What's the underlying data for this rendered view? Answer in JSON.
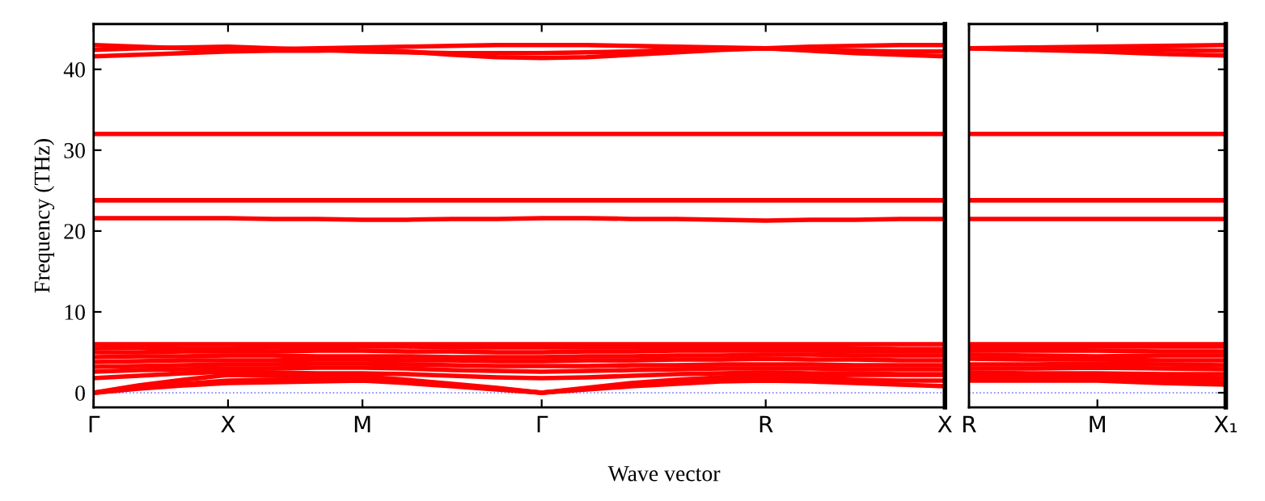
{
  "chart_data": [
    {
      "type": "line",
      "ylabel": "Frequency (THz)",
      "xlabel": "Wave vector",
      "ylim": [
        -1.8,
        45.6
      ],
      "yticks": [
        0,
        10,
        20,
        30,
        40
      ],
      "grid": false,
      "legend": false,
      "marker": "none",
      "line_style": "solid",
      "categories": [
        "Γ",
        null,
        null,
        "X",
        null,
        null,
        "M",
        null,
        null,
        null,
        "Γ",
        null,
        null,
        null,
        null,
        "R",
        null,
        null,
        null,
        "X"
      ],
      "ref_lines": [
        {
          "axis": "y",
          "value": 0,
          "color": "#8080ff",
          "line_style": "dotted"
        }
      ],
      "series": [
        {
          "color": "#ff0000",
          "values": [
            0,
            0.5,
            0.9,
            1.2,
            1.3,
            1.4,
            1.5,
            1.2,
            0.8,
            0.4,
            0,
            0.4,
            0.8,
            1.1,
            1.4,
            1.5,
            1.4,
            1.2,
            1.0,
            0.8
          ]
        },
        {
          "color": "#ff0000",
          "values": [
            0,
            0.6,
            1.1,
            1.5,
            1.6,
            1.7,
            1.8,
            1.4,
            1.0,
            0.5,
            0,
            0.5,
            1.0,
            1.4,
            1.7,
            1.8,
            1.7,
            1.6,
            1.5,
            1.5
          ]
        },
        {
          "color": "#ff0000",
          "values": [
            0,
            0.9,
            1.6,
            2.2,
            2.1,
            2.0,
            2.0,
            1.6,
            1.1,
            0.6,
            0,
            0.6,
            1.2,
            1.6,
            1.9,
            2.1,
            2.1,
            2.2,
            2.2,
            2.2
          ]
        },
        {
          "color": "#ff0000",
          "values": [
            1.8,
            2.1,
            2.4,
            2.6,
            2.5,
            2.4,
            2.4,
            2.3,
            2.1,
            1.9,
            1.8,
            1.9,
            2.1,
            2.3,
            2.4,
            2.5,
            2.4,
            2.4,
            2.3,
            2.3
          ]
        },
        {
          "color": "#ff0000",
          "values": [
            2.6,
            2.8,
            2.9,
            3.0,
            3.0,
            3.1,
            3.1,
            3.0,
            2.8,
            2.7,
            2.6,
            2.7,
            2.8,
            2.9,
            3.0,
            3.0,
            3.0,
            2.9,
            2.9,
            2.9
          ]
        },
        {
          "color": "#ff0000",
          "values": [
            3.2,
            3.3,
            3.4,
            3.5,
            3.5,
            3.6,
            3.6,
            3.5,
            3.4,
            3.3,
            3.3,
            3.3,
            3.4,
            3.4,
            3.5,
            3.5,
            3.5,
            3.4,
            3.4,
            3.4
          ]
        },
        {
          "color": "#ff0000",
          "values": [
            3.8,
            3.9,
            4.0,
            4.0,
            4.0,
            4.1,
            4.1,
            4.0,
            4.0,
            3.9,
            3.9,
            4.0,
            4.0,
            4.1,
            4.1,
            4.2,
            4.1,
            4.1,
            4.0,
            4.0
          ]
        },
        {
          "color": "#ff0000",
          "values": [
            4.4,
            4.5,
            4.5,
            4.6,
            4.6,
            4.5,
            4.5,
            4.5,
            4.4,
            4.4,
            4.4,
            4.5,
            4.5,
            4.6,
            4.6,
            4.7,
            4.7,
            4.6,
            4.6,
            4.6
          ]
        },
        {
          "color": "#ff0000",
          "values": [
            5.0,
            5.0,
            5.1,
            5.1,
            5.1,
            5.2,
            5.2,
            5.1,
            5.1,
            5.0,
            5.0,
            5.1,
            5.1,
            5.2,
            5.2,
            5.2,
            5.2,
            5.1,
            5.1,
            5.1
          ]
        },
        {
          "color": "#ff0000",
          "values": [
            5.5,
            5.6,
            5.5,
            5.5,
            5.6,
            5.6,
            5.7,
            5.7,
            5.6,
            5.6,
            5.6,
            5.6,
            5.6,
            5.6,
            5.6,
            5.6,
            5.6,
            5.5,
            5.4,
            5.4
          ]
        },
        {
          "color": "#ff0000",
          "values": [
            6.0,
            6.0,
            6.0,
            6.0,
            6.0,
            6.0,
            6.0,
            6.0,
            6.0,
            6.0,
            6.0,
            6.0,
            6.0,
            6.0,
            6.0,
            6.0,
            6.0,
            6.0,
            6.0,
            6.0
          ]
        },
        {
          "color": "#ff0000",
          "values": [
            21.6,
            21.6,
            21.6,
            21.6,
            21.5,
            21.5,
            21.4,
            21.4,
            21.5,
            21.5,
            21.6,
            21.6,
            21.5,
            21.5,
            21.4,
            21.3,
            21.4,
            21.4,
            21.5,
            21.5
          ]
        },
        {
          "color": "#ff0000",
          "values": [
            23.8,
            23.8,
            23.8,
            23.8,
            23.8,
            23.8,
            23.8,
            23.8,
            23.8,
            23.8,
            23.8,
            23.8,
            23.8,
            23.8,
            23.8,
            23.8,
            23.8,
            23.8,
            23.8,
            23.8
          ]
        },
        {
          "color": "#ff0000",
          "values": [
            32,
            32,
            32,
            32,
            32,
            32,
            32,
            32,
            32,
            32,
            32,
            32,
            32,
            32,
            32,
            32,
            32,
            32,
            32,
            32
          ]
        },
        {
          "color": "#ff0000",
          "values": [
            41.6,
            41.8,
            42.0,
            42.2,
            42.3,
            42.3,
            42.4,
            42.2,
            41.8,
            41.5,
            41.4,
            41.5,
            41.8,
            42.1,
            42.4,
            42.6,
            42.3,
            42.0,
            41.8,
            41.6
          ]
        },
        {
          "color": "#ff0000",
          "values": [
            42.4,
            42.6,
            42.7,
            42.8,
            42.6,
            42.4,
            42.2,
            42.1,
            42.0,
            42.0,
            42.0,
            42.1,
            42.2,
            42.4,
            42.5,
            42.6,
            42.4,
            42.3,
            42.2,
            42.2
          ]
        },
        {
          "color": "#ff0000",
          "values": [
            43.0,
            42.8,
            42.6,
            42.4,
            42.5,
            42.6,
            42.7,
            42.8,
            42.9,
            43.0,
            43.0,
            43.0,
            42.9,
            42.8,
            42.7,
            42.6,
            42.8,
            42.9,
            43.0,
            43.0
          ]
        }
      ]
    },
    {
      "type": "line",
      "ylim": [
        -1.8,
        45.6
      ],
      "yticks": [
        0,
        10,
        20,
        30,
        40
      ],
      "tick_labels": "x",
      "grid": false,
      "legend": false,
      "marker": "none",
      "line_style": "solid",
      "categories": [
        "R",
        null,
        "M",
        null,
        "X₁"
      ],
      "ref_lines": [
        {
          "axis": "y",
          "value": 0,
          "color": "#8080ff",
          "line_style": "dotted"
        }
      ],
      "series": [
        {
          "color": "#ff0000",
          "values": [
            1.5,
            1.5,
            1.5,
            1.2,
            1.0
          ]
        },
        {
          "color": "#ff0000",
          "values": [
            1.8,
            1.8,
            1.8,
            1.5,
            1.3
          ]
        },
        {
          "color": "#ff0000",
          "values": [
            2.1,
            2.0,
            2.0,
            1.9,
            1.8
          ]
        },
        {
          "color": "#ff0000",
          "values": [
            2.5,
            2.4,
            2.4,
            2.3,
            2.3
          ]
        },
        {
          "color": "#ff0000",
          "values": [
            3.0,
            3.0,
            3.1,
            3.0,
            2.9
          ]
        },
        {
          "color": "#ff0000",
          "values": [
            3.5,
            3.5,
            3.6,
            3.5,
            3.4
          ]
        },
        {
          "color": "#ff0000",
          "values": [
            4.2,
            4.1,
            4.1,
            4.0,
            4.0
          ]
        },
        {
          "color": "#ff0000",
          "values": [
            4.7,
            4.6,
            4.5,
            4.6,
            4.6
          ]
        },
        {
          "color": "#ff0000",
          "values": [
            5.2,
            5.2,
            5.2,
            5.1,
            5.1
          ]
        },
        {
          "color": "#ff0000",
          "values": [
            5.6,
            5.6,
            5.7,
            5.7,
            5.7
          ]
        },
        {
          "color": "#ff0000",
          "values": [
            6.0,
            6.0,
            6.0,
            6.0,
            6.0
          ]
        },
        {
          "color": "#ff0000",
          "values": [
            21.5,
            21.5,
            21.5,
            21.5,
            21.5
          ]
        },
        {
          "color": "#ff0000",
          "values": [
            23.8,
            23.8,
            23.8,
            23.8,
            23.8
          ]
        },
        {
          "color": "#ff0000",
          "values": [
            32,
            32,
            32,
            32,
            32
          ]
        },
        {
          "color": "#ff0000",
          "values": [
            42.6,
            42.4,
            42.2,
            41.9,
            41.7
          ]
        },
        {
          "color": "#ff0000",
          "values": [
            42.6,
            42.5,
            42.5,
            42.4,
            42.3
          ]
        },
        {
          "color": "#ff0000",
          "values": [
            42.6,
            42.7,
            42.8,
            42.9,
            43.0
          ]
        }
      ]
    }
  ]
}
